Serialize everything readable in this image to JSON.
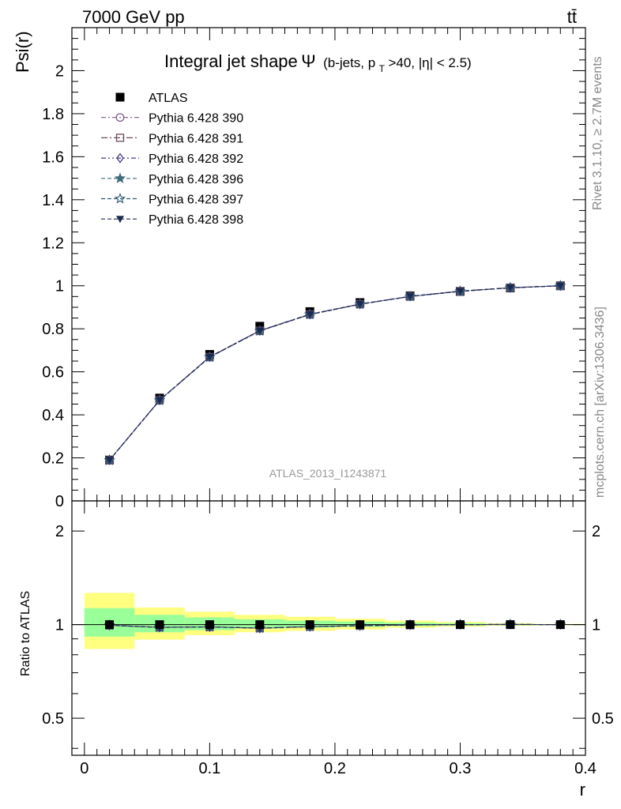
{
  "header": {
    "energy_label": "7000 GeV pp",
    "process_label": "tt̄"
  },
  "side_labels": {
    "rivet": "Rivet 3.1.10, ≥ 2.7M events",
    "mcplots": "mcplots.cern.ch [arXiv:1306.3436]"
  },
  "watermark": "ATLAS_2013_I1243871",
  "chart_data": [
    {
      "type": "line",
      "title_main": "Integral jet shape",
      "title_symbol": "Ψ",
      "title_sub": "(b-jets, p",
      "title_sub_T": "T",
      "title_sub_rest": ">40, |η| < 2.5)",
      "ylabel": "Psi(r)",
      "xlabel": "r",
      "xlim": [
        -0.01,
        0.4
      ],
      "ylim": [
        0,
        2.2
      ],
      "y_ticks": [
        "0",
        "0.2",
        "0.4",
        "0.6",
        "0.8",
        "1",
        "1.2",
        "1.4",
        "1.6",
        "1.8",
        "2"
      ],
      "legend_position": "top-left",
      "x": [
        0.02,
        0.06,
        0.1,
        0.14,
        0.18,
        0.22,
        0.26,
        0.3,
        0.34,
        0.38
      ],
      "series": [
        {
          "name": "ATLAS",
          "values": [
            0.19,
            0.478,
            0.681,
            0.812,
            0.88,
            0.922,
            0.953,
            0.974,
            0.99,
            1.0
          ],
          "color": "#000000",
          "marker": "filled-square"
        },
        {
          "name": "Pythia 6.428 390",
          "values": [
            0.189,
            0.467,
            0.668,
            0.79,
            0.866,
            0.914,
            0.95,
            0.974,
            0.991,
            1.0
          ],
          "color": "#7a5a8c",
          "marker": "open-circle"
        },
        {
          "name": "Pythia 6.428 391",
          "values": [
            0.189,
            0.468,
            0.669,
            0.791,
            0.867,
            0.915,
            0.95,
            0.975,
            0.991,
            1.0
          ],
          "color": "#6b4a5e",
          "marker": "open-square"
        },
        {
          "name": "Pythia 6.428 392",
          "values": [
            0.19,
            0.469,
            0.67,
            0.792,
            0.868,
            0.915,
            0.951,
            0.975,
            0.991,
            1.0
          ],
          "color": "#4b3a8a",
          "marker": "open-diamond"
        },
        {
          "name": "Pythia 6.428 396",
          "values": [
            0.189,
            0.468,
            0.668,
            0.79,
            0.866,
            0.914,
            0.95,
            0.974,
            0.99,
            1.0
          ],
          "color": "#3f6a7a",
          "marker": "filled-star"
        },
        {
          "name": "Pythia 6.428 397",
          "values": [
            0.189,
            0.467,
            0.668,
            0.79,
            0.867,
            0.914,
            0.95,
            0.974,
            0.991,
            1.0
          ],
          "color": "#2f5a72",
          "marker": "open-star"
        },
        {
          "name": "Pythia 6.428 398",
          "values": [
            0.19,
            0.468,
            0.669,
            0.791,
            0.867,
            0.915,
            0.951,
            0.975,
            0.991,
            1.0
          ],
          "color": "#1c2a52",
          "marker": "filled-triangle-down"
        }
      ]
    },
    {
      "type": "line",
      "ylabel": "Ratio to ATLAS",
      "xlabel": "r",
      "xlim": [
        -0.01,
        0.4
      ],
      "ylim": [
        0.38,
        2.5
      ],
      "y_scale": "log",
      "y_ticks": [
        "0.5",
        "1",
        "2"
      ],
      "x_ticks": [
        "0",
        "0.1",
        "0.2",
        "0.3",
        "0.4"
      ],
      "bands": {
        "x_edges": [
          0.0,
          0.04,
          0.08,
          0.12,
          0.16,
          0.2,
          0.24,
          0.28,
          0.32,
          0.36,
          0.4
        ],
        "outer_lo": [
          0.835,
          0.895,
          0.925,
          0.945,
          0.955,
          0.965,
          0.977,
          0.985,
          0.992,
          0.996
        ],
        "outer_hi": [
          1.265,
          1.135,
          1.1,
          1.075,
          1.06,
          1.045,
          1.03,
          1.02,
          1.01,
          1.005
        ],
        "inner_lo": [
          0.915,
          0.945,
          0.96,
          0.972,
          0.978,
          0.984,
          0.989,
          0.993,
          0.996,
          0.998
        ],
        "inner_hi": [
          1.13,
          1.075,
          1.055,
          1.04,
          1.03,
          1.022,
          1.015,
          1.01,
          1.005,
          1.002
        ],
        "outer_color": "#ffff80",
        "inner_color": "#99ff99"
      },
      "ratio_values": [
        0.995,
        0.98,
        0.983,
        0.974,
        0.985,
        0.992,
        0.997,
        1.0,
        1.001,
        1.0
      ]
    }
  ]
}
